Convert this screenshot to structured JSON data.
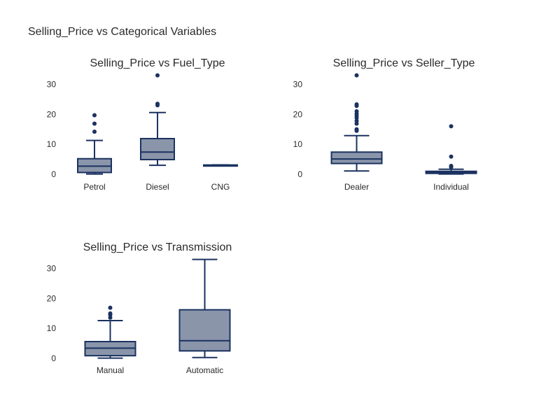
{
  "figure_title": "Selling_Price vs Categorical Variables",
  "colors": {
    "box_fill": "#8a95aa",
    "line": "#1b3260",
    "text": "#2a2a2a"
  },
  "chart_data": [
    {
      "type": "box",
      "title": "Selling_Price vs Fuel_Type",
      "ylim": [
        0,
        35
      ],
      "yticks": [
        0,
        10,
        20,
        30
      ],
      "grid": false,
      "categories": [
        "Petrol",
        "Diesel",
        "CNG"
      ],
      "boxes": [
        {
          "category": "Petrol",
          "whisker_low": 0.1,
          "q1": 0.6,
          "median": 2.7,
          "q3": 5.2,
          "whisker_high": 11.3,
          "outliers": [
            14.2,
            16.9,
            19.7
          ]
        },
        {
          "category": "Diesel",
          "whisker_low": 3.0,
          "q1": 4.9,
          "median": 7.4,
          "q3": 11.9,
          "whisker_high": 20.6,
          "outliers": [
            23.0,
            23.5,
            33.0
          ]
        },
        {
          "category": "CNG",
          "whisker_low": 2.95,
          "q1": 3.0,
          "median": 3.05,
          "q3": 3.1,
          "whisker_high": 3.15,
          "outliers": []
        }
      ]
    },
    {
      "type": "box",
      "title": "Selling_Price vs Seller_Type",
      "ylim": [
        0,
        35
      ],
      "yticks": [
        0,
        10,
        20,
        30
      ],
      "grid": false,
      "categories": [
        "Dealer",
        "Individual"
      ],
      "boxes": [
        {
          "category": "Dealer",
          "whisker_low": 1.1,
          "q1": 3.6,
          "median": 5.1,
          "q3": 7.4,
          "whisker_high": 12.9,
          "outliers": [
            14.5,
            15.0,
            16.9,
            17.8,
            18.8,
            19.5,
            20.2,
            21.0,
            22.8,
            23.3,
            33.0
          ]
        },
        {
          "category": "Individual",
          "whisker_low": 0.1,
          "q1": 0.3,
          "median": 0.6,
          "q3": 1.0,
          "whisker_high": 1.7,
          "outliers": [
            2.4,
            2.8,
            5.9,
            16.0
          ]
        }
      ]
    },
    {
      "type": "box",
      "title": "Selling_Price vs Transmission",
      "ylim": [
        0,
        35
      ],
      "yticks": [
        0,
        10,
        20,
        30
      ],
      "grid": false,
      "categories": [
        "Manual",
        "Automatic"
      ],
      "boxes": [
        {
          "category": "Manual",
          "whisker_low": 0.1,
          "q1": 0.9,
          "median": 3.4,
          "q3": 5.6,
          "whisker_high": 12.6,
          "outliers": [
            13.6,
            14.5,
            15.0,
            16.9
          ]
        },
        {
          "category": "Automatic",
          "whisker_low": 0.3,
          "q1": 2.5,
          "median": 5.9,
          "q3": 16.2,
          "whisker_high": 33.0,
          "outliers": []
        }
      ]
    }
  ]
}
